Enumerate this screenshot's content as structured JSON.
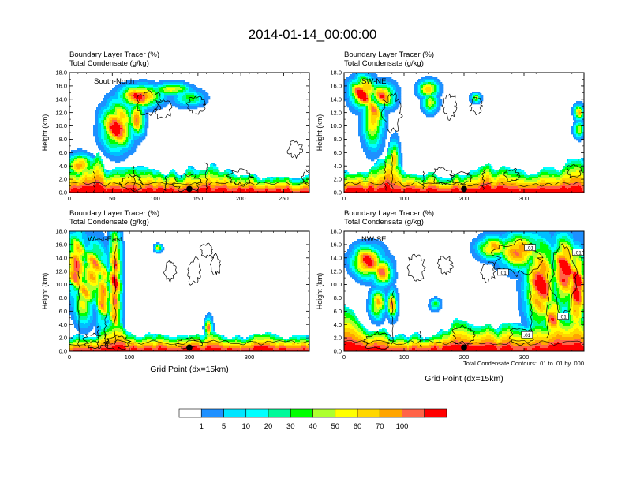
{
  "figure_title": "2014-01-14_00:00:00",
  "contour_note": "Total Condensate Contours: .01 to .01 by .000",
  "color_levels": [
    "1",
    "5",
    "10",
    "20",
    "30",
    "40",
    "50",
    "60",
    "70",
    "100"
  ],
  "palette": [
    "#ffffff",
    "#1e90ff",
    "#00bfff",
    "#00ffff",
    "#00fa9a",
    "#00ff00",
    "#adff2f",
    "#ffff00",
    "#ffd700",
    "#ffa500",
    "#ff6347",
    "#ff0000"
  ],
  "chart_data": [
    {
      "type": "heatmap",
      "subtitle_1": "Boundary Layer Tracer   (%)",
      "subtitle_2": "Total Condensate   (g/kg)",
      "label": "South-North",
      "ylabel": "Height (km)",
      "xlabel": "",
      "xlim": [
        0,
        280
      ],
      "ylim": [
        0,
        18
      ],
      "x_ticks": [
        "0",
        "50",
        "100",
        "150",
        "200",
        "250"
      ],
      "y_ticks": [
        "0.0",
        "2.0",
        "4.0",
        "6.0",
        "8.0",
        "10.0",
        "12.0",
        "14.0",
        "16.0",
        "18.0"
      ],
      "marker_x": 140,
      "contour_labels": []
    },
    {
      "type": "heatmap",
      "subtitle_1": "Boundary Layer Tracer   (%)",
      "subtitle_2": "Total Condensate   (g/kg)",
      "label": "SW-NE",
      "ylabel": "Height (km)",
      "xlabel": "",
      "xlim": [
        0,
        400
      ],
      "ylim": [
        0,
        18
      ],
      "x_ticks": [
        "0",
        "100",
        "200",
        "300"
      ],
      "y_ticks": [
        "0.0",
        "2.0",
        "4.0",
        "6.0",
        "8.0",
        "10.0",
        "12.0",
        "14.0",
        "16.0",
        "18.0"
      ],
      "marker_x": 200,
      "contour_labels": []
    },
    {
      "type": "heatmap",
      "subtitle_1": "Boundary Layer Tracer   (%)",
      "subtitle_2": "Total Condensate   (g/kg)",
      "label": "West-East",
      "ylabel": "Height (km)",
      "xlabel": "Grid Point (dx=15km)",
      "xlim": [
        0,
        400
      ],
      "ylim": [
        0,
        18
      ],
      "x_ticks": [
        "0",
        "100",
        "200",
        "300"
      ],
      "y_ticks": [
        "0.0",
        "2.0",
        "4.0",
        "6.0",
        "8.0",
        "10.0",
        "12.0",
        "14.0",
        "16.0",
        "18.0"
      ],
      "marker_x": 200,
      "contour_labels": []
    },
    {
      "type": "heatmap",
      "subtitle_1": "Boundary Layer Tracer   (%)",
      "subtitle_2": "Total Condensate   (g/kg)",
      "label": "NW-SE",
      "ylabel": "Height (km)",
      "xlabel": "Grid Point (dx=15km)",
      "xlim": [
        0,
        400
      ],
      "ylim": [
        0,
        18
      ],
      "x_ticks": [
        "0",
        "100",
        "200",
        "300"
      ],
      "y_ticks": [
        "0.0",
        "2.0",
        "4.0",
        "6.0",
        "8.0",
        "10.0",
        "12.0",
        "14.0",
        "16.0",
        "18.0"
      ],
      "marker_x": 200,
      "contour_labels": [
        {
          "text": ".01",
          "x": 310,
          "y": 15.5
        },
        {
          "text": ".01",
          "x": 390,
          "y": 14.8
        },
        {
          "text": ".01",
          "x": 265,
          "y": 11.8
        },
        {
          "text": ".01",
          "x": 365,
          "y": 5.2
        },
        {
          "text": ".01",
          "x": 305,
          "y": 2.4
        }
      ]
    }
  ]
}
